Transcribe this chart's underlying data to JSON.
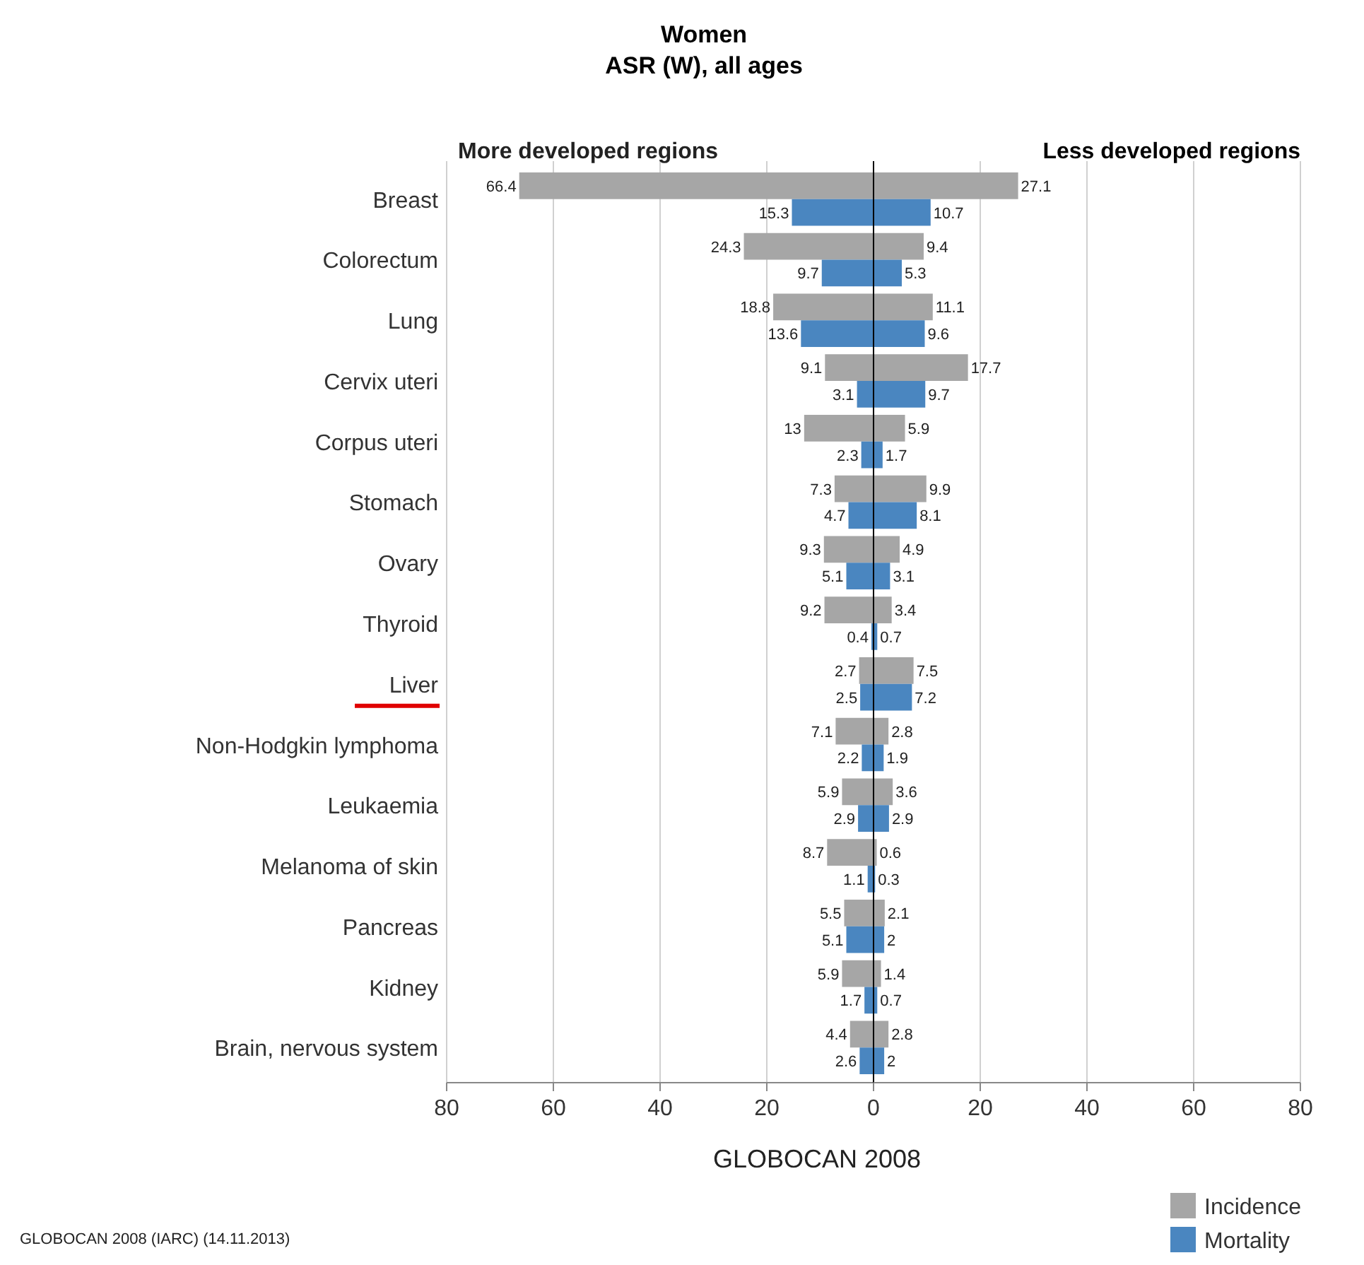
{
  "chart_data": [
    {
      "type": "bar",
      "orientation": "horizontal",
      "title": "Women",
      "subtitle": "ASR (W), all ages",
      "categories": [
        "Breast",
        "Colorectum",
        "Lung",
        "Cervix uteri",
        "Corpus uteri",
        "Stomach",
        "Ovary",
        "Thyroid",
        "Liver",
        "Non-Hodgkin lymphoma",
        "Leukaemia",
        "Melanoma of skin",
        "Pancreas",
        "Kidney",
        "Brain, nervous system"
      ],
      "series": [
        {
          "color": "#a6a6a6",
          "values": [
            66.4,
            24.3,
            18.8,
            9.1,
            13,
            7.3,
            9.3,
            9.2,
            2.7,
            7.1,
            5.9,
            8.7,
            5.5,
            5.9,
            4.4
          ]
        },
        {
          "color": "#4a86c0",
          "values": [
            15.3,
            9.7,
            13.6,
            3.1,
            2.3,
            4.7,
            5.1,
            0.4,
            2.5,
            2.2,
            2.9,
            1.1,
            5.1,
            1.7,
            2.6
          ]
        }
      ],
      "xlim": [
        80,
        0
      ],
      "xticks": [
        80,
        60,
        40,
        20,
        0
      ],
      "grid": "x",
      "data_labels": true,
      "annotations": [
        "More developed regions",
        "GLOBOCAN 2008",
        "GLOBOCAN 2008 (IARC) (14.11.2013)"
      ]
    },
    {
      "type": "bar",
      "orientation": "horizontal",
      "title": "Less developed regions",
      "categories": [
        null,
        null,
        null,
        null,
        null,
        null,
        null,
        null,
        null,
        null,
        null,
        null,
        null,
        null,
        null
      ],
      "tick_labels": "x",
      "series": [
        {
          "name": "Incidence",
          "color": "#a6a6a6",
          "values": [
            27.1,
            9.4,
            11.1,
            17.7,
            5.9,
            9.9,
            4.9,
            3.4,
            7.5,
            2.8,
            3.6,
            0.6,
            2.1,
            1.4,
            2.8
          ]
        },
        {
          "name": "Mortality",
          "color": "#4a86c0",
          "values": [
            10.7,
            5.3,
            9.6,
            9.7,
            1.7,
            8.1,
            3.1,
            0.7,
            7.2,
            1.9,
            2.9,
            0.3,
            2,
            0.7,
            2
          ]
        }
      ],
      "xlim": [
        0,
        80
      ],
      "xticks": [
        {
          "value": 0,
          "label": null
        },
        20,
        40,
        60,
        80
      ],
      "grid": "x",
      "data_labels": true,
      "legend": "bottom right"
    }
  ]
}
